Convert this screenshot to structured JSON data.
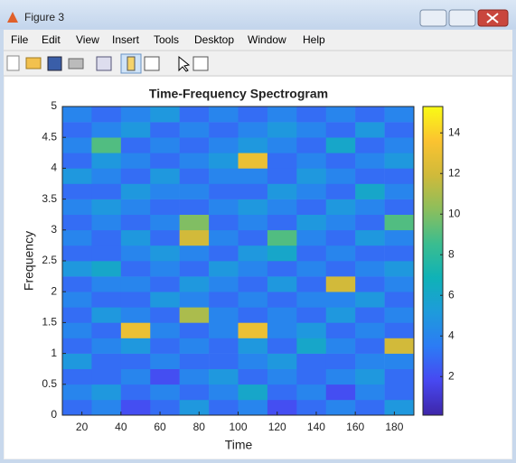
{
  "window": {
    "title": "Figure 3",
    "menu": [
      "File",
      "Edit",
      "View",
      "Insert",
      "Tools",
      "Desktop",
      "Window",
      "Help"
    ]
  },
  "chart_data": {
    "type": "heatmap",
    "title": "Time-Frequency Spectrogram",
    "x_label": "Time",
    "y_label": "Frequency",
    "xedges": [
      10,
      25,
      40,
      55,
      70,
      85,
      100,
      115,
      130,
      145,
      160,
      175,
      190
    ],
    "yedges": [
      0,
      0.25,
      0.5,
      0.75,
      1,
      1.25,
      1.5,
      1.75,
      2,
      2.25,
      2.5,
      2.75,
      3,
      3.25,
      3.5,
      3.75,
      4,
      4.25,
      4.5,
      4.75,
      5
    ],
    "values": [
      [
        3,
        4,
        2,
        3,
        5,
        3,
        4,
        2,
        3,
        4,
        3,
        5
      ],
      [
        4,
        5,
        3,
        4,
        3,
        4,
        6,
        3,
        4,
        2,
        4,
        3
      ],
      [
        3,
        3,
        4,
        2,
        4,
        5,
        3,
        4,
        3,
        4,
        5,
        3
      ],
      [
        5,
        3,
        3,
        4,
        3,
        3,
        4,
        5,
        3,
        3,
        4,
        4
      ],
      [
        3,
        4,
        5,
        3,
        4,
        3,
        5,
        3,
        6,
        4,
        3,
        12
      ],
      [
        4,
        3,
        13,
        4,
        3,
        4,
        13,
        4,
        5,
        3,
        4,
        3
      ],
      [
        3,
        5,
        4,
        3,
        11,
        4,
        3,
        4,
        3,
        5,
        3,
        4
      ],
      [
        4,
        3,
        3,
        5,
        4,
        3,
        4,
        3,
        4,
        4,
        5,
        3
      ],
      [
        3,
        4,
        4,
        3,
        5,
        4,
        3,
        5,
        3,
        12,
        3,
        4
      ],
      [
        5,
        6,
        3,
        4,
        3,
        5,
        4,
        3,
        4,
        3,
        4,
        5
      ],
      [
        3,
        3,
        4,
        5,
        4,
        3,
        5,
        6,
        3,
        4,
        3,
        3
      ],
      [
        4,
        3,
        5,
        3,
        12,
        4,
        3,
        9,
        4,
        3,
        5,
        4
      ],
      [
        3,
        4,
        3,
        4,
        10,
        3,
        4,
        3,
        5,
        4,
        3,
        9
      ],
      [
        4,
        5,
        4,
        3,
        3,
        4,
        5,
        4,
        3,
        5,
        4,
        3
      ],
      [
        3,
        3,
        5,
        4,
        4,
        3,
        3,
        5,
        4,
        3,
        6,
        4
      ],
      [
        5,
        4,
        3,
        5,
        3,
        4,
        4,
        3,
        5,
        4,
        3,
        3
      ],
      [
        3,
        5,
        4,
        3,
        4,
        5,
        13,
        3,
        4,
        3,
        4,
        5
      ],
      [
        4,
        9,
        3,
        4,
        3,
        4,
        5,
        4,
        3,
        6,
        3,
        4
      ],
      [
        3,
        4,
        5,
        3,
        4,
        3,
        4,
        5,
        4,
        3,
        5,
        3
      ],
      [
        4,
        3,
        4,
        5,
        3,
        4,
        3,
        4,
        3,
        4,
        3,
        4
      ]
    ],
    "xlim": [
      10,
      190
    ],
    "xticks": [
      20,
      40,
      60,
      80,
      100,
      120,
      140,
      160,
      180
    ],
    "ylim": [
      0,
      5
    ],
    "yticks": [
      0,
      0.5,
      1,
      1.5,
      2,
      2.5,
      3,
      3.5,
      4,
      4.5,
      5
    ],
    "clim": [
      0.1,
      15.3
    ],
    "cticks": [
      2,
      4,
      6,
      8,
      10,
      12,
      14
    ],
    "colormap": [
      "#3e26a8",
      "#4748f1",
      "#2c7bf5",
      "#1e9bdb",
      "#0fb2b7",
      "#3bbd8f",
      "#8cbe5c",
      "#d0ba3a",
      "#fbc330",
      "#f9fb15"
    ]
  }
}
